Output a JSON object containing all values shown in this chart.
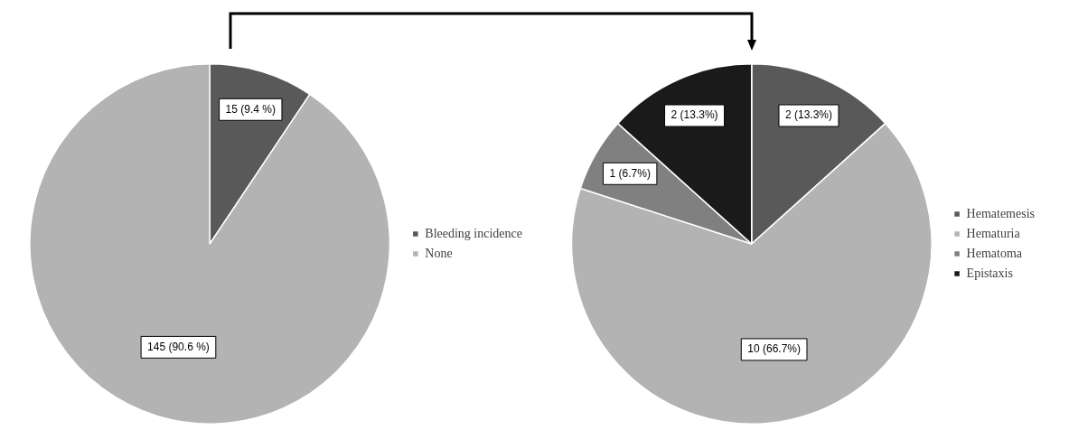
{
  "chart_data": [
    {
      "type": "pie",
      "categories": [
        "Bleeding incidence",
        "None"
      ],
      "values": [
        15,
        145
      ],
      "colors": [
        "#595959",
        "#b3b3b3"
      ],
      "value_labels": [
        "15 (9.4 %)",
        "145 (90.6 %)"
      ],
      "legend": "right"
    },
    {
      "type": "pie",
      "categories": [
        "Hematemesis",
        "Hematuria",
        "Hematoma",
        "Epistaxis"
      ],
      "values": [
        2,
        10,
        1,
        2
      ],
      "colors": [
        "#595959",
        "#b3b3b3",
        "#808080",
        "#1a1a1a"
      ],
      "value_labels": [
        "2 (13.3%)",
        "10 (66.7%)",
        "1 (6.7%)",
        "2 (13.3%)"
      ],
      "legend": "right"
    }
  ]
}
